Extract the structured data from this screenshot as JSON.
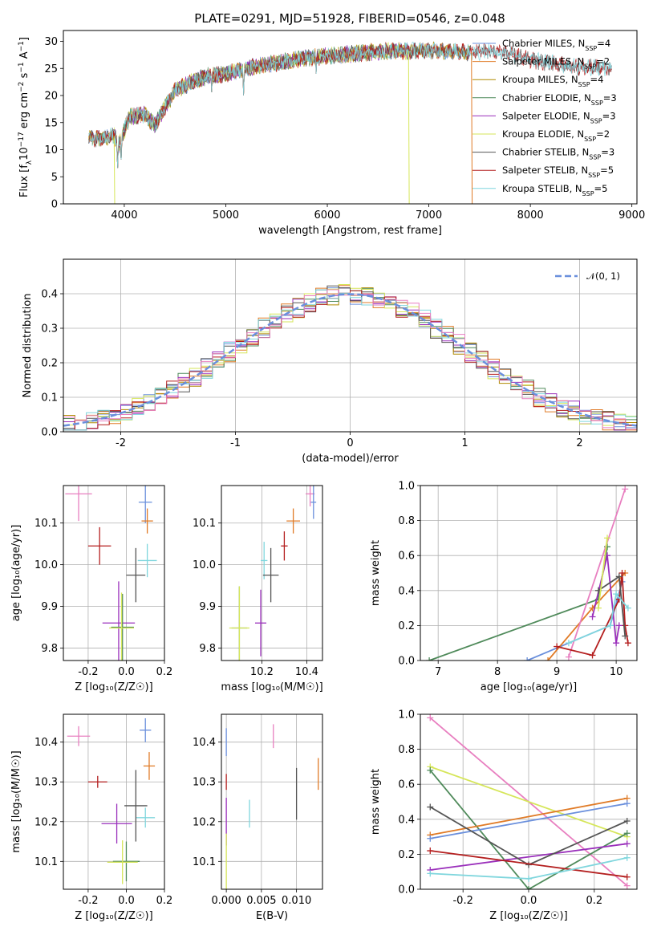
{
  "title": "PLATE=0291, MJD=51928, FIBERID=0546, z=0.048",
  "colors": {
    "Chabrier MILES": "#6a8fdc",
    "Salpeter MILES": "#e07b27",
    "Kroupa MILES": "#b08a00",
    "Chabrier ELODIE": "#4f8a5a",
    "Salpeter ELODIE": "#9a2fbb",
    "Kroupa ELODIE": "#d6e65a",
    "Chabrier STELIB": "#555555",
    "Salpeter STELIB": "#b41f1f",
    "Kroupa STELIB": "#7fd6dd",
    "gauss": "#6a8fdc",
    "pink": "#e87fc0"
  },
  "chart_data": [
    {
      "id": "spectrum",
      "type": "line",
      "xlabel": "wavelength [Angstrom, rest frame]",
      "ylabel_parts": [
        "Flux [f",
        "λ",
        "10",
        "−17",
        " erg cm",
        "−2",
        " s",
        "−1",
        " A",
        "−1",
        "]"
      ],
      "xlim": [
        3400,
        9050
      ],
      "ylim": [
        0,
        32
      ],
      "xticks": [
        4000,
        5000,
        6000,
        7000,
        8000,
        9000
      ],
      "yticks": [
        0,
        5,
        10,
        15,
        20,
        25,
        30
      ],
      "legend_position": "upper right",
      "legend": [
        {
          "name": "Chabrier MILES",
          "label": "Chabrier MILES, N",
          "sub": "SSP",
          "eq": "=4"
        },
        {
          "name": "Salpeter MILES",
          "label": "Salpeter MILES, N",
          "sub": "SSP",
          "eq": "=2"
        },
        {
          "name": "Kroupa MILES",
          "label": "Kroupa MILES, N",
          "sub": "SSP",
          "eq": "=4"
        },
        {
          "name": "Chabrier ELODIE",
          "label": "Chabrier ELODIE, N",
          "sub": "SSP",
          "eq": "=3"
        },
        {
          "name": "Salpeter ELODIE",
          "label": "Salpeter ELODIE, N",
          "sub": "SSP",
          "eq": "=3"
        },
        {
          "name": "Kroupa ELODIE",
          "label": "Kroupa ELODIE, N",
          "sub": "SSP",
          "eq": "=2"
        },
        {
          "name": "Chabrier STELIB",
          "label": "Chabrier STELIB, N",
          "sub": "SSP",
          "eq": "=3"
        },
        {
          "name": "Salpeter STELIB",
          "label": "Salpeter STELIB, N",
          "sub": "SSP",
          "eq": "=5"
        },
        {
          "name": "Kroupa STELIB",
          "label": "Kroupa STELIB, N",
          "sub": "SSP",
          "eq": "=5"
        }
      ],
      "continuum": [
        [
          3650,
          12
        ],
        [
          3900,
          12.5
        ],
        [
          3950,
          11
        ],
        [
          4050,
          16
        ],
        [
          4200,
          16.5
        ],
        [
          4300,
          14.5
        ],
        [
          4500,
          21
        ],
        [
          4800,
          23.5
        ],
        [
          5000,
          24
        ],
        [
          5200,
          25
        ],
        [
          5500,
          26
        ],
        [
          5800,
          27
        ],
        [
          6000,
          27.3
        ],
        [
          6300,
          27.8
        ],
        [
          6600,
          28.2
        ],
        [
          7000,
          28.3
        ],
        [
          7400,
          28
        ],
        [
          7600,
          28.2
        ],
        [
          7800,
          27.8
        ],
        [
          8000,
          26.5
        ],
        [
          8200,
          26
        ],
        [
          8500,
          25.2
        ],
        [
          8800,
          25
        ]
      ],
      "series_extent": {
        "Chabrier MILES": [
          3650,
          7400
        ],
        "Salpeter MILES": [
          3650,
          7400
        ],
        "Kroupa MILES": [
          3650,
          7400
        ],
        "Chabrier ELODIE": [
          3900,
          6800
        ],
        "Salpeter ELODIE": [
          3900,
          6800
        ],
        "Kroupa ELODIE": [
          3900,
          6800
        ],
        "Chabrier STELIB": [
          3650,
          8800
        ],
        "Salpeter STELIB": [
          3650,
          8800
        ],
        "Kroupa STELIB": [
          3650,
          8800
        ]
      },
      "dropouts": [
        [
          3900,
          -5,
          "Kroupa ELODIE"
        ],
        [
          6800,
          -5,
          "Kroupa ELODIE"
        ],
        [
          7420,
          -5,
          "Salpeter MILES"
        ]
      ],
      "absorption_lines": [
        [
          3934,
          6
        ],
        [
          3968,
          7
        ],
        [
          4102,
          15
        ],
        [
          4340,
          17
        ],
        [
          4861,
          20
        ],
        [
          5175,
          20
        ],
        [
          5890,
          24
        ],
        [
          6563,
          25.5
        ]
      ]
    },
    {
      "id": "residuals",
      "type": "histogram",
      "xlabel": "(data-model)/error",
      "ylabel": "Normed distribution",
      "xlim": [
        -2.5,
        2.5
      ],
      "ylim": [
        0,
        0.5
      ],
      "xticks": [
        -2,
        -1,
        0,
        1,
        2
      ],
      "yticks": [
        0.0,
        0.1,
        0.2,
        0.3,
        0.4
      ],
      "legend_position": "upper right",
      "legend": [
        {
          "name": "gauss",
          "label": "𝒩(0, 1)"
        }
      ],
      "bin_width": 0.1
    },
    {
      "id": "age_vs_Z",
      "type": "scatter",
      "xlabel": "Z [log₁₀(Z/Z☉)]",
      "ylabel": "age  [log₁₀(age/yr)]",
      "xlim": [
        -0.33,
        0.2
      ],
      "ylim": [
        9.77,
        10.19
      ],
      "xticks": [
        -0.2,
        0.0,
        0.2
      ],
      "yticks": [
        9.8,
        9.9,
        10.0,
        10.1
      ],
      "points": [
        {
          "series": "pink",
          "x": -0.25,
          "y": 10.17,
          "xerr": 0.07,
          "yerr": 0.065
        },
        {
          "series": "Chabrier MILES",
          "x": 0.1,
          "y": 10.15,
          "xerr": 0.035,
          "yerr": 0.05
        },
        {
          "series": "Salpeter MILES",
          "x": 0.11,
          "y": 10.105,
          "xerr": 0.03,
          "yerr": 0.03
        },
        {
          "series": "Salpeter STELIB",
          "x": -0.14,
          "y": 10.045,
          "xerr": 0.06,
          "yerr": 0.045
        },
        {
          "series": "Kroupa STELIB",
          "x": 0.11,
          "y": 10.01,
          "xerr": 0.05,
          "yerr": 0.04
        },
        {
          "series": "Chabrier STELIB",
          "x": 0.05,
          "y": 9.975,
          "xerr": 0.05,
          "yerr": 0.065
        },
        {
          "series": "Salpeter ELODIE",
          "x": -0.04,
          "y": 9.86,
          "xerr": 0.085,
          "yerr": 0.1
        },
        {
          "series": "Chabrier ELODIE",
          "x": -0.02,
          "y": 9.85,
          "xerr": 0.06,
          "yerr": 0.08
        },
        {
          "series": "Kroupa ELODIE",
          "x": -0.025,
          "y": 9.848,
          "xerr": 0.065,
          "yerr": 0.085
        }
      ]
    },
    {
      "id": "age_vs_mass",
      "type": "scatter",
      "xlabel": "mass [log₁₀(M/M☉)]",
      "ylabel": "",
      "xlim": [
        10.02,
        10.47
      ],
      "ylim": [
        9.77,
        10.19
      ],
      "xticks": [
        10.2,
        10.4
      ],
      "yticks": [
        9.8,
        9.9,
        10.0,
        10.1
      ],
      "points": [
        {
          "series": "pink",
          "x": 10.415,
          "y": 10.17,
          "xerr": 0.02,
          "yerr": 0.03
        },
        {
          "series": "Chabrier MILES",
          "x": 10.43,
          "y": 10.15,
          "xerr": 0.012,
          "yerr": 0.04
        },
        {
          "series": "Salpeter MILES",
          "x": 10.34,
          "y": 10.105,
          "xerr": 0.03,
          "yerr": 0.03
        },
        {
          "series": "Salpeter STELIB",
          "x": 10.3,
          "y": 10.045,
          "xerr": 0.015,
          "yerr": 0.035
        },
        {
          "series": "Kroupa STELIB",
          "x": 10.21,
          "y": 10.01,
          "xerr": 0.015,
          "yerr": 0.045
        },
        {
          "series": "Chabrier STELIB",
          "x": 10.24,
          "y": 9.975,
          "xerr": 0.035,
          "yerr": 0.065
        },
        {
          "series": "Salpeter ELODIE",
          "x": 10.195,
          "y": 9.86,
          "xerr": 0.025,
          "yerr": 0.08
        },
        {
          "series": "Chabrier ELODIE",
          "x": 10.1,
          "y": 9.848,
          "xerr": 0.035,
          "yerr": 0.1
        },
        {
          "series": "Kroupa ELODIE",
          "x": 10.1,
          "y": 9.848,
          "xerr": 0.045,
          "yerr": 0.1
        }
      ]
    },
    {
      "id": "weight_vs_age",
      "type": "line",
      "xlabel": "age  [log₁₀(age/yr)]",
      "ylabel": "mass weight",
      "xlim": [
        6.7,
        10.35
      ],
      "ylim": [
        0,
        1.0
      ],
      "xticks": [
        7,
        8,
        9,
        10
      ],
      "yticks": [
        0.0,
        0.2,
        0.4,
        0.6,
        0.8,
        1.0
      ],
      "series": [
        {
          "name": "Chabrier ELODIE",
          "points": [
            [
              6.85,
              0
            ],
            [
              9.7,
              0.35
            ],
            [
              9.85,
              0.65
            ]
          ]
        },
        {
          "name": "Chabrier MILES",
          "points": [
            [
              8.5,
              0
            ],
            [
              9.9,
              0.2
            ],
            [
              10.1,
              0.45
            ]
          ]
        },
        {
          "name": "Salpeter MILES",
          "points": [
            [
              8.85,
              0
            ],
            [
              9.6,
              0.3
            ],
            [
              10.15,
              0.5
            ]
          ]
        },
        {
          "name": "pink",
          "points": [
            [
              9.2,
              0.02
            ],
            [
              10.15,
              0.98
            ]
          ]
        },
        {
          "name": "Salpeter STELIB",
          "points": [
            [
              9.0,
              0.08
            ],
            [
              9.6,
              0.03
            ],
            [
              10.05,
              0.35
            ],
            [
              10.1,
              0.5
            ],
            [
              10.15,
              0.2
            ],
            [
              10.2,
              0.1
            ]
          ]
        },
        {
          "name": "Salpeter ELODIE",
          "points": [
            [
              9.6,
              0.25
            ],
            [
              9.85,
              0.6
            ],
            [
              10.0,
              0.1
            ],
            [
              10.05,
              0.2
            ]
          ]
        },
        {
          "name": "Chabrier STELIB",
          "points": [
            [
              9.7,
              0.4
            ],
            [
              10.05,
              0.48
            ],
            [
              10.15,
              0.14
            ]
          ]
        },
        {
          "name": "Kroupa ELODIE",
          "points": [
            [
              9.7,
              0.3
            ],
            [
              9.85,
              0.7
            ]
          ]
        },
        {
          "name": "Kroupa STELIB",
          "points": [
            [
              9.2,
              0.1
            ],
            [
              9.9,
              0.2
            ],
            [
              10.0,
              0.38
            ],
            [
              10.2,
              0.3
            ]
          ]
        }
      ]
    },
    {
      "id": "mass_vs_Z",
      "type": "scatter",
      "xlabel": "Z [log₁₀(Z/Z☉)]",
      "ylabel": "mass [log₁₀(M/M☉)]",
      "xlim": [
        -0.33,
        0.2
      ],
      "ylim": [
        10.03,
        10.47
      ],
      "xticks": [
        -0.2,
        0.0,
        0.2
      ],
      "yticks": [
        10.1,
        10.2,
        10.3,
        10.4
      ],
      "points": [
        {
          "series": "pink",
          "x": -0.25,
          "y": 10.415,
          "xerr": 0.06,
          "yerr": 0.025
        },
        {
          "series": "Chabrier MILES",
          "x": 0.1,
          "y": 10.43,
          "xerr": 0.03,
          "yerr": 0.03
        },
        {
          "series": "Salpeter MILES",
          "x": 0.12,
          "y": 10.34,
          "xerr": 0.03,
          "yerr": 0.035
        },
        {
          "series": "Salpeter STELIB",
          "x": -0.15,
          "y": 10.3,
          "xerr": 0.05,
          "yerr": 0.015
        },
        {
          "series": "Kroupa STELIB",
          "x": 0.1,
          "y": 10.21,
          "xerr": 0.05,
          "yerr": 0.025
        },
        {
          "series": "Chabrier STELIB",
          "x": 0.05,
          "y": 10.24,
          "xerr": 0.06,
          "yerr": 0.09
        },
        {
          "series": "Salpeter ELODIE",
          "x": -0.05,
          "y": 10.195,
          "xerr": 0.08,
          "yerr": 0.05
        },
        {
          "series": "Chabrier ELODIE",
          "x": 0.0,
          "y": 10.1,
          "xerr": 0.07,
          "yerr": 0.05
        },
        {
          "series": "Kroupa ELODIE",
          "x": -0.02,
          "y": 10.098,
          "xerr": 0.08,
          "yerr": 0.055
        }
      ]
    },
    {
      "id": "mass_vs_ebv",
      "type": "scatter",
      "xlabel": "E(B-V)",
      "ylabel": "",
      "xlim": [
        -0.0007,
        0.0137
      ],
      "ylim": [
        10.03,
        10.47
      ],
      "xticks": [
        0.0,
        0.005,
        0.01
      ],
      "xtick_labels": [
        "0.000",
        "0.005",
        "0.010"
      ],
      "yticks": [
        10.1,
        10.2,
        10.3,
        10.4
      ],
      "points": [
        {
          "series": "Chabrier MILES",
          "x": 0.0,
          "y": 10.4,
          "xerr": 0,
          "yerr": 0.035
        },
        {
          "series": "pink",
          "x": 0.0067,
          "y": 10.415,
          "xerr": 0,
          "yerr": 0.03
        },
        {
          "series": "Salpeter MILES",
          "x": 0.0131,
          "y": 10.32,
          "xerr": 0,
          "yerr": 0.04
        },
        {
          "series": "Salpeter STELIB",
          "x": 0.0,
          "y": 10.3,
          "xerr": 0,
          "yerr": 0.02
        },
        {
          "series": "Chabrier STELIB",
          "x": 0.01,
          "y": 10.27,
          "xerr": 0,
          "yerr": 0.065
        },
        {
          "series": "Salpeter ELODIE",
          "x": 0.0,
          "y": 10.2,
          "xerr": 0,
          "yerr": 0.06
        },
        {
          "series": "Kroupa STELIB",
          "x": 0.0033,
          "y": 10.22,
          "xerr": 0,
          "yerr": 0.035
        },
        {
          "series": "Kroupa ELODIE",
          "x": 0.0,
          "y": 10.1,
          "xerr": 0,
          "yerr": 0.07
        }
      ]
    },
    {
      "id": "weight_vs_Z",
      "type": "line",
      "xlabel": "Z [log₁₀(Z/Z☉)]",
      "ylabel": "mass weight",
      "xlim": [
        -0.33,
        0.33
      ],
      "ylim": [
        0,
        1.0
      ],
      "xticks": [
        -0.2,
        0.0,
        0.2
      ],
      "yticks": [
        0.0,
        0.2,
        0.4,
        0.6,
        0.8,
        1.0
      ],
      "series": [
        {
          "name": "pink",
          "points": [
            [
              -0.3,
              0.98
            ],
            [
              0.3,
              0.02
            ]
          ]
        },
        {
          "name": "Kroupa ELODIE",
          "points": [
            [
              -0.3,
              0.7
            ],
            [
              0.3,
              0.3
            ]
          ]
        },
        {
          "name": "Chabrier ELODIE",
          "points": [
            [
              -0.3,
              0.68
            ],
            [
              0.0,
              0.0
            ],
            [
              0.3,
              0.32
            ]
          ]
        },
        {
          "name": "Salpeter ELODIE",
          "points": [
            [
              -0.3,
              0.11
            ],
            [
              0.3,
              0.26
            ]
          ]
        },
        {
          "name": "Salpeter MILES",
          "points": [
            [
              -0.3,
              0.31
            ],
            [
              0.3,
              0.52
            ]
          ]
        },
        {
          "name": "Chabrier MILES",
          "points": [
            [
              -0.3,
              0.29
            ],
            [
              0.3,
              0.49
            ]
          ]
        },
        {
          "name": "Chabrier STELIB",
          "points": [
            [
              -0.3,
              0.47
            ],
            [
              0.0,
              0.14
            ],
            [
              0.3,
              0.39
            ]
          ]
        },
        {
          "name": "Salpeter STELIB",
          "points": [
            [
              -0.3,
              0.22
            ],
            [
              0.3,
              0.07
            ]
          ]
        },
        {
          "name": "Kroupa STELIB",
          "points": [
            [
              -0.3,
              0.09
            ],
            [
              0.0,
              0.06
            ],
            [
              0.3,
              0.18
            ]
          ]
        }
      ]
    }
  ]
}
